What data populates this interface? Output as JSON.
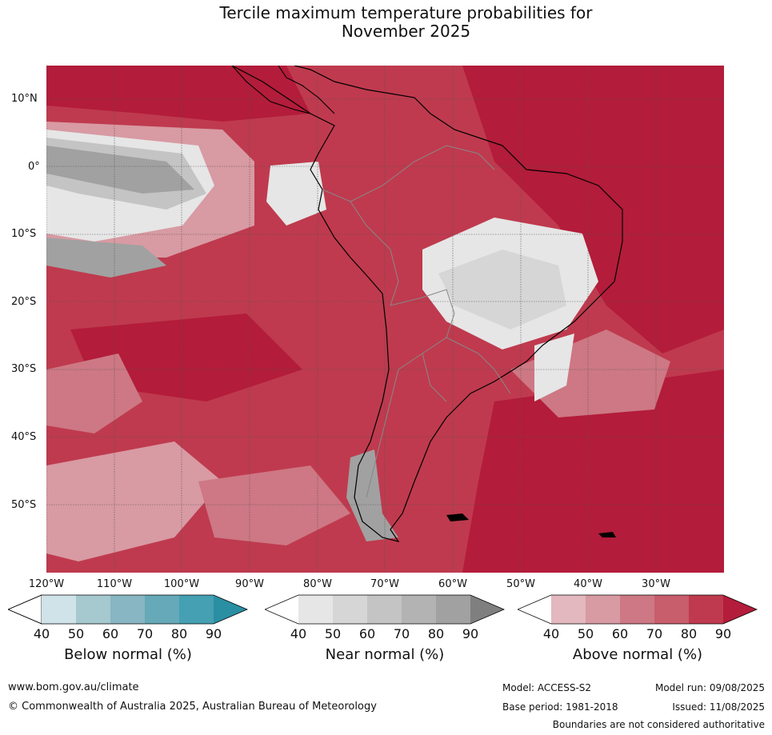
{
  "title_line1": "Tercile maximum temperature probabilities for",
  "title_line2": "November 2025",
  "lat_labels": [
    "10°N",
    "0°",
    "10°S",
    "20°S",
    "30°S",
    "40°S",
    "50°S"
  ],
  "lon_labels": [
    "120°W",
    "110°W",
    "100°W",
    "90°W",
    "80°W",
    "70°W",
    "60°W",
    "50°W",
    "40°W",
    "30°W"
  ],
  "colorbars": [
    {
      "title": "Below normal (%)",
      "ticks": [
        "40",
        "50",
        "60",
        "70",
        "80",
        "90"
      ],
      "colors": [
        "#cfe3e9",
        "#a6c8cf",
        "#88b6c2",
        "#66a9b8",
        "#44a0b2",
        "#2a8fa3"
      ]
    },
    {
      "title": "Near normal (%)",
      "ticks": [
        "40",
        "50",
        "60",
        "70",
        "80",
        "90"
      ],
      "colors": [
        "#e6e6e6",
        "#d6d6d6",
        "#c4c4c4",
        "#b3b3b3",
        "#a1a1a1",
        "#7f7f7f"
      ]
    },
    {
      "title": "Above normal (%)",
      "ticks": [
        "40",
        "50",
        "60",
        "70",
        "80",
        "90"
      ],
      "colors": [
        "#e3b8bf",
        "#d89aa3",
        "#cd7884",
        "#c85d6c",
        "#bf3a4e",
        "#b31c3a"
      ]
    }
  ],
  "map_colors": {
    "above_80": "#bf3a4e",
    "above_90": "#b31c3a",
    "above_70": "#c85d6c",
    "above_60": "#cd7884",
    "above_50": "#d89aa3",
    "near_40": "#e6e6e6",
    "near_50": "#d6d6d6",
    "near_60": "#c4c4c4",
    "near_80": "#a1a1a1",
    "coast": "#000000",
    "borders": "#808080"
  },
  "footer": {
    "website": "www.bom.gov.au/climate",
    "copyright": "© Commonwealth of Australia 2025, Australian Bureau of Meteorology",
    "model": "Model: ACCESS-S2",
    "base_period": "Base period: 1981-2018",
    "model_run": "Model run: 09/08/2025",
    "issued": "Issued: 11/08/2025",
    "disclaimer": "Boundaries are not considered authoritative"
  }
}
